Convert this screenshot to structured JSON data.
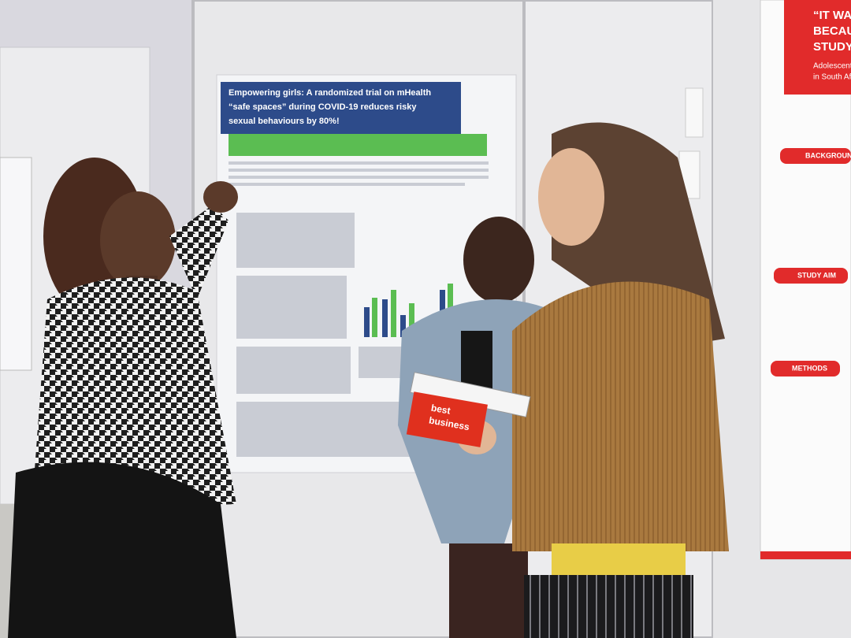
{
  "left_poster": {
    "title_lines": [
      "Empowering girls: A randomized trial on mHealth",
      "“safe spaces” during COVID-19 reduces risky",
      "sexual behaviours by 80%!"
    ]
  },
  "right_poster": {
    "title_lines": [
      "“IT WA",
      "BECAU",
      "STUDY"
    ],
    "subtitle_lines": [
      "Adolescents",
      "in South Afr"
    ],
    "sections": [
      "BACKGROUND",
      "STUDY AIM",
      "METHODS"
    ]
  },
  "box": {
    "label_lines": [
      "best",
      "business"
    ]
  }
}
